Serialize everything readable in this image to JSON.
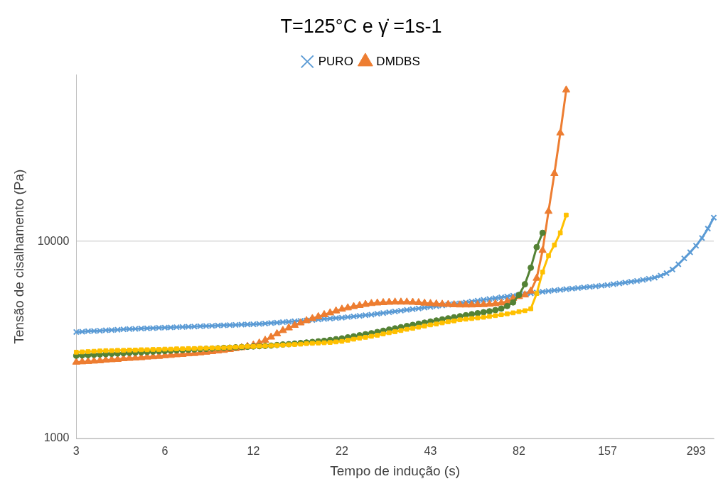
{
  "chart_data": {
    "type": "line",
    "title": "T=125°C e γ̇ =1s-1",
    "xlabel": "Tempo de indução (s)",
    "ylabel": "Tensão de cisalhamento (Pa)",
    "categories": [
      "3",
      null,
      null,
      null,
      null,
      null,
      null,
      null,
      null,
      null,
      null,
      null,
      null,
      null,
      null,
      "6",
      null,
      null,
      null,
      null,
      null,
      null,
      null,
      null,
      null,
      null,
      null,
      null,
      null,
      null,
      "12",
      null,
      null,
      null,
      null,
      null,
      null,
      null,
      null,
      null,
      null,
      null,
      null,
      null,
      null,
      "22",
      null,
      null,
      null,
      null,
      null,
      null,
      null,
      null,
      null,
      null,
      null,
      null,
      null,
      null,
      "43",
      null,
      null,
      null,
      null,
      null,
      null,
      null,
      null,
      null,
      null,
      null,
      null,
      null,
      null,
      "82",
      null,
      null,
      null,
      null,
      null,
      null,
      null,
      null,
      null,
      null,
      null,
      null,
      null,
      null,
      "157",
      null,
      null,
      null,
      null,
      null,
      null,
      null,
      null,
      null,
      null,
      null,
      null,
      null,
      null,
      "293",
      null,
      null,
      null
    ],
    "log": "y",
    "ylim": [
      1000,
      70000
    ],
    "yticks": [
      1000,
      10000
    ],
    "grid": "y",
    "legend": "top",
    "series": [
      {
        "name": "PURO",
        "color": "#5b9bd5",
        "marker": "cross",
        "values": [
          3470,
          3480,
          3500,
          3510,
          3520,
          3540,
          3550,
          3560,
          3580,
          3590,
          3600,
          3610,
          3620,
          3630,
          3640,
          3650,
          3660,
          3670,
          3680,
          3690,
          3700,
          3710,
          3720,
          3730,
          3740,
          3750,
          3760,
          3770,
          3780,
          3790,
          3800,
          3810,
          3830,
          3850,
          3870,
          3890,
          3910,
          3930,
          3950,
          3970,
          3990,
          4020,
          4040,
          4060,
          4080,
          4100,
          4130,
          4160,
          4190,
          4220,
          4250,
          4290,
          4330,
          4370,
          4410,
          4450,
          4490,
          4530,
          4570,
          4610,
          4650,
          4690,
          4730,
          4770,
          4810,
          4850,
          4900,
          4950,
          5000,
          5050,
          5100,
          5150,
          5200,
          5250,
          5300,
          5350,
          5400,
          5450,
          5500,
          5550,
          5600,
          5640,
          5680,
          5720,
          5760,
          5800,
          5840,
          5880,
          5920,
          5960,
          6000,
          6060,
          6120,
          6180,
          6240,
          6300,
          6380,
          6460,
          6550,
          6700,
          6900,
          7200,
          7650,
          8200,
          8800,
          9500,
          10400,
          11600,
          13200
        ]
      },
      {
        "name": "DMDBS",
        "color": "#ed7d31",
        "marker": "triangle",
        "values": [
          2440,
          2450,
          2460,
          2470,
          2480,
          2500,
          2510,
          2520,
          2540,
          2550,
          2560,
          2570,
          2590,
          2600,
          2610,
          2630,
          2640,
          2660,
          2670,
          2690,
          2700,
          2720,
          2740,
          2760,
          2780,
          2800,
          2830,
          2860,
          2890,
          2930,
          2980,
          3050,
          3150,
          3270,
          3400,
          3530,
          3640,
          3750,
          3860,
          3960,
          4060,
          4150,
          4250,
          4340,
          4440,
          4530,
          4600,
          4670,
          4730,
          4790,
          4840,
          4870,
          4890,
          4910,
          4920,
          4920,
          4920,
          4910,
          4890,
          4860,
          4840,
          4820,
          4800,
          4790,
          4770,
          4760,
          4760,
          4760,
          4770,
          4780,
          4800,
          4830,
          4870,
          4950,
          5130,
          5250,
          5350,
          5600,
          6500,
          9000,
          14200,
          22100,
          35500,
          58600,
          null,
          null,
          null,
          null,
          null,
          null,
          null,
          null,
          null,
          null,
          null,
          null,
          null,
          null,
          null,
          null,
          null,
          null,
          null,
          null,
          null,
          null,
          null,
          null,
          null
        ]
      },
      {
        "color": "#548235",
        "marker": "circle",
        "values": [
          2630,
          2640,
          2650,
          2660,
          2670,
          2680,
          2690,
          2700,
          2710,
          2720,
          2730,
          2740,
          2750,
          2760,
          2770,
          2780,
          2790,
          2800,
          2810,
          2820,
          2830,
          2840,
          2850,
          2860,
          2870,
          2880,
          2890,
          2900,
          2910,
          2920,
          2930,
          2940,
          2950,
          2960,
          2980,
          3000,
          3010,
          3030,
          3050,
          3070,
          3090,
          3110,
          3130,
          3160,
          3190,
          3220,
          3260,
          3300,
          3340,
          3380,
          3420,
          3470,
          3520,
          3570,
          3620,
          3670,
          3720,
          3770,
          3820,
          3870,
          3920,
          3970,
          4020,
          4070,
          4120,
          4170,
          4220,
          4270,
          4320,
          4370,
          4420,
          4480,
          4560,
          4700,
          4900,
          5350,
          6060,
          7350,
          9350,
          11050,
          null,
          null,
          null,
          null,
          null,
          null,
          null,
          null,
          null,
          null,
          null,
          null,
          null,
          null,
          null,
          null,
          null,
          null,
          null,
          null,
          null,
          null,
          null,
          null,
          null,
          null,
          null,
          null,
          null
        ]
      },
      {
        "color": "#ffc000",
        "marker": "square",
        "values": [
          2740,
          2750,
          2760,
          2770,
          2780,
          2790,
          2790,
          2800,
          2800,
          2810,
          2810,
          2820,
          2820,
          2830,
          2830,
          2840,
          2840,
          2850,
          2850,
          2860,
          2860,
          2870,
          2870,
          2880,
          2880,
          2890,
          2900,
          2910,
          2920,
          2930,
          2930,
          2940,
          2950,
          2960,
          2970,
          2980,
          2990,
          3000,
          3010,
          3030,
          3040,
          3050,
          3060,
          3070,
          3090,
          3110,
          3150,
          3190,
          3230,
          3260,
          3300,
          3340,
          3390,
          3440,
          3480,
          3530,
          3580,
          3620,
          3670,
          3720,
          3770,
          3810,
          3860,
          3910,
          3950,
          4000,
          4030,
          4060,
          4090,
          4120,
          4160,
          4200,
          4240,
          4290,
          4340,
          4400,
          4450,
          4550,
          5440,
          6990,
          8460,
          9590,
          11050,
          13600,
          null,
          null,
          null,
          null,
          null,
          null,
          null,
          null,
          null,
          null,
          null,
          null,
          null,
          null,
          null,
          null,
          null,
          null,
          null,
          null,
          null,
          null,
          null,
          null,
          null
        ]
      }
    ]
  }
}
